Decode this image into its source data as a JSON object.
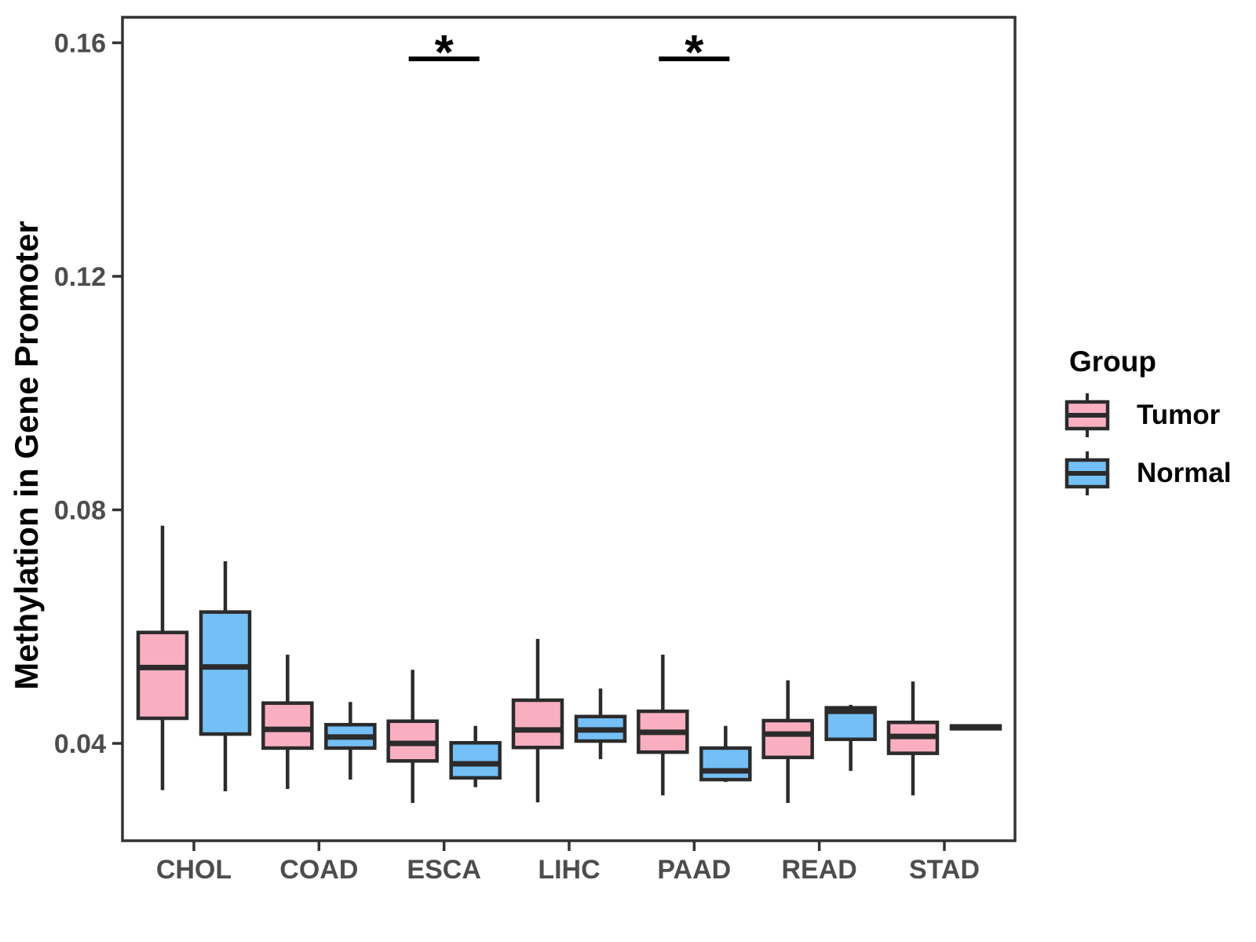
{
  "chart_data": {
    "type": "grouped_boxplot",
    "title": "",
    "xlabel": "",
    "ylabel": "Methylation in Gene Promoter",
    "ylim": [
      0.023,
      0.165
    ],
    "yticks": [
      "0.04",
      "0.08",
      "0.12",
      "0.16"
    ],
    "ytick_values": [
      0.04,
      0.08,
      0.12,
      0.16
    ],
    "categories": [
      "CHOL",
      "COAD",
      "ESCA",
      "LIHC",
      "PAAD",
      "READ",
      "STAD"
    ],
    "legend": {
      "title": "Group",
      "entries": [
        {
          "label": "Tumor",
          "color": "#FAAFC1"
        },
        {
          "label": "Normal",
          "color": "#74BFF5"
        }
      ]
    },
    "colors": {
      "tumor_fill": "#FAAFC1",
      "normal_fill": "#74BFF5",
      "box_stroke": "#2B2B2B",
      "axis_line": "#333333",
      "tick_text": "#4D4D4D",
      "annotation": "#000000"
    },
    "groups": [
      {
        "category": "CHOL",
        "tumor": {
          "whisker_low": 0.032,
          "q1": 0.0443,
          "median": 0.053,
          "q3": 0.059,
          "whisker_high": 0.0773
        },
        "normal": {
          "whisker_low": 0.0318,
          "q1": 0.0416,
          "median": 0.0531,
          "q3": 0.0625,
          "whisker_high": 0.0712
        }
      },
      {
        "category": "COAD",
        "tumor": {
          "whisker_low": 0.0322,
          "q1": 0.0392,
          "median": 0.0424,
          "q3": 0.0469,
          "whisker_high": 0.0552
        },
        "normal": {
          "whisker_low": 0.0338,
          "q1": 0.0392,
          "median": 0.0411,
          "q3": 0.0432,
          "whisker_high": 0.0471
        }
      },
      {
        "category": "ESCA",
        "tumor": {
          "whisker_low": 0.0298,
          "q1": 0.037,
          "median": 0.04,
          "q3": 0.0438,
          "whisker_high": 0.0526
        },
        "normal": {
          "whisker_low": 0.0325,
          "q1": 0.0341,
          "median": 0.0365,
          "q3": 0.0401,
          "whisker_high": 0.043
        }
      },
      {
        "category": "LIHC",
        "tumor": {
          "whisker_low": 0.0299,
          "q1": 0.0393,
          "median": 0.0423,
          "q3": 0.0474,
          "whisker_high": 0.0579
        },
        "normal": {
          "whisker_low": 0.0373,
          "q1": 0.0404,
          "median": 0.0423,
          "q3": 0.0446,
          "whisker_high": 0.0494
        }
      },
      {
        "category": "PAAD",
        "tumor": {
          "whisker_low": 0.0311,
          "q1": 0.0385,
          "median": 0.0419,
          "q3": 0.0455,
          "whisker_high": 0.0552
        },
        "normal": {
          "whisker_low": 0.0334,
          "q1": 0.0338,
          "median": 0.0353,
          "q3": 0.0392,
          "whisker_high": 0.043
        }
      },
      {
        "category": "READ",
        "tumor": {
          "whisker_low": 0.0298,
          "q1": 0.0376,
          "median": 0.0416,
          "q3": 0.0439,
          "whisker_high": 0.0508
        },
        "normal": {
          "whisker_low": 0.0353,
          "q1": 0.0407,
          "median": 0.0455,
          "q3": 0.0461,
          "whisker_high": 0.0466
        }
      },
      {
        "category": "STAD",
        "tumor": {
          "whisker_low": 0.0311,
          "q1": 0.0383,
          "median": 0.0412,
          "q3": 0.0436,
          "whisker_high": 0.0506
        },
        "normal": {
          "whisker_low": 0.0423,
          "q1": 0.0425,
          "median": 0.0428,
          "q3": 0.043,
          "whisker_high": 0.0432
        }
      }
    ],
    "significance": [
      {
        "category": "ESCA",
        "label": "*"
      },
      {
        "category": "PAAD",
        "label": "*"
      }
    ]
  }
}
